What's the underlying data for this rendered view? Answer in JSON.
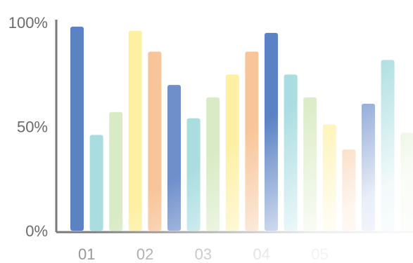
{
  "chart_data": {
    "type": "bar",
    "title": "",
    "xlabel": "",
    "ylabel": "",
    "ylim": [
      0,
      100
    ],
    "yticks": [
      {
        "value": 0,
        "label": "0%"
      },
      {
        "value": 50,
        "label": "50%"
      },
      {
        "value": 100,
        "label": "100%"
      }
    ],
    "grid": false,
    "legend": "none",
    "groups": [
      {
        "label": "01",
        "values": [
          98,
          46,
          57
        ]
      },
      {
        "label": "02",
        "values": [
          96,
          86,
          70
        ]
      },
      {
        "label": "03",
        "values": [
          54,
          64,
          75
        ]
      },
      {
        "label": "04",
        "values": [
          86,
          95,
          75
        ]
      },
      {
        "label": "05",
        "values": [
          64,
          51,
          39
        ]
      },
      {
        "label": "",
        "values": [
          61,
          82,
          47
        ]
      }
    ],
    "bar_colors": [
      "#5b82c4",
      "#a9dde0",
      "#d9ebc4",
      "#fdf0a3",
      "#f8c59a",
      "#6f8fcb",
      "#a9dde0",
      "#d9ebc4",
      "#fdf0a3",
      "#f8c59a",
      "#5b82c4",
      "#a9dde0",
      "#d9ebc4",
      "#fdf0a3",
      "#f8c59a",
      "#6f8fcb",
      "#a9dde0",
      "#d9ebc4"
    ],
    "axis_color": "#7a7a7a"
  }
}
